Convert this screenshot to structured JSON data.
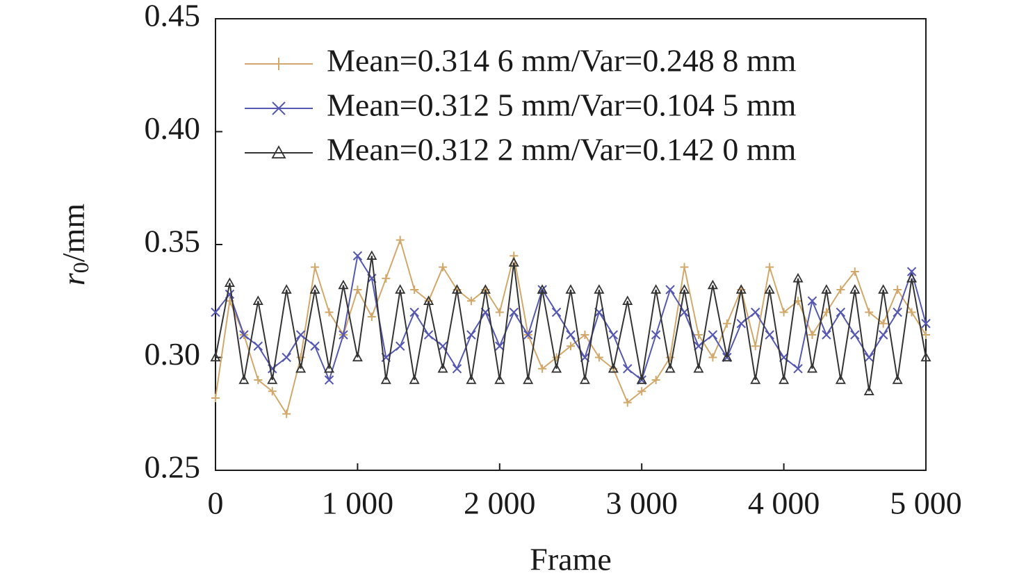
{
  "chart_data": {
    "type": "line",
    "x_label": "Frame",
    "y_label": {
      "main": "r",
      "sub": "0",
      "unit": "/mm"
    },
    "x": [
      0,
      100,
      200,
      300,
      400,
      500,
      600,
      700,
      800,
      900,
      1000,
      1100,
      1200,
      1300,
      1400,
      1500,
      1600,
      1700,
      1800,
      1900,
      2000,
      2100,
      2200,
      2300,
      2400,
      2500,
      2600,
      2700,
      2800,
      2900,
      3000,
      3100,
      3200,
      3300,
      3400,
      3500,
      3600,
      3700,
      3800,
      3900,
      4000,
      4100,
      4200,
      4300,
      4400,
      4500,
      4600,
      4700,
      4800,
      4900,
      5000
    ],
    "series": [
      {
        "name": "Mean=0.314 6 mm/Var=0.248 8 mm",
        "color": "#d2a86a",
        "marker": "plus",
        "values": [
          0.282,
          0.325,
          0.31,
          0.29,
          0.285,
          0.275,
          0.3,
          0.34,
          0.32,
          0.31,
          0.33,
          0.318,
          0.335,
          0.352,
          0.33,
          0.325,
          0.34,
          0.33,
          0.325,
          0.33,
          0.32,
          0.345,
          0.31,
          0.295,
          0.3,
          0.305,
          0.31,
          0.3,
          0.295,
          0.28,
          0.285,
          0.29,
          0.3,
          0.34,
          0.31,
          0.3,
          0.315,
          0.33,
          0.305,
          0.34,
          0.32,
          0.325,
          0.31,
          0.32,
          0.33,
          0.338,
          0.32,
          0.315,
          0.33,
          0.32,
          0.31
        ]
      },
      {
        "name": "Mean=0.312 5 mm/Var=0.104 5 mm",
        "color": "#5558b0",
        "marker": "cross",
        "values": [
          0.32,
          0.328,
          0.31,
          0.305,
          0.295,
          0.3,
          0.31,
          0.305,
          0.29,
          0.31,
          0.345,
          0.335,
          0.3,
          0.305,
          0.32,
          0.31,
          0.305,
          0.295,
          0.31,
          0.32,
          0.305,
          0.32,
          0.31,
          0.33,
          0.32,
          0.31,
          0.3,
          0.32,
          0.31,
          0.295,
          0.29,
          0.31,
          0.33,
          0.32,
          0.305,
          0.31,
          0.3,
          0.315,
          0.32,
          0.31,
          0.3,
          0.295,
          0.325,
          0.31,
          0.32,
          0.31,
          0.3,
          0.31,
          0.32,
          0.338,
          0.315
        ]
      },
      {
        "name": "Mean=0.312 2 mm/Var=0.142 0 mm",
        "color": "#333333",
        "marker": "triangle",
        "values": [
          0.3,
          0.333,
          0.29,
          0.325,
          0.29,
          0.33,
          0.295,
          0.33,
          0.295,
          0.332,
          0.3,
          0.345,
          0.29,
          0.33,
          0.29,
          0.325,
          0.295,
          0.33,
          0.29,
          0.33,
          0.29,
          0.342,
          0.29,
          0.33,
          0.295,
          0.33,
          0.29,
          0.33,
          0.295,
          0.325,
          0.29,
          0.33,
          0.295,
          0.33,
          0.295,
          0.332,
          0.3,
          0.33,
          0.29,
          0.33,
          0.29,
          0.335,
          0.295,
          0.33,
          0.29,
          0.33,
          0.285,
          0.33,
          0.29,
          0.335,
          0.3
        ]
      }
    ],
    "xlim": [
      0,
      5000
    ],
    "xticks": [
      0,
      {
        "value": 1000,
        "label": "1 000"
      },
      {
        "value": 2000,
        "label": "2 000"
      },
      {
        "value": 3000,
        "label": "3 000"
      },
      {
        "value": 4000,
        "label": "4 000"
      },
      {
        "value": 5000,
        "label": "5 000"
      }
    ],
    "ylim": [
      0.25,
      0.45
    ],
    "yticks": [
      0.25,
      {
        "value": 0.3,
        "label": "0.30"
      },
      0.35,
      {
        "value": 0.4,
        "label": "0.40"
      },
      0.45
    ],
    "legend": "upper right",
    "grid": false
  }
}
